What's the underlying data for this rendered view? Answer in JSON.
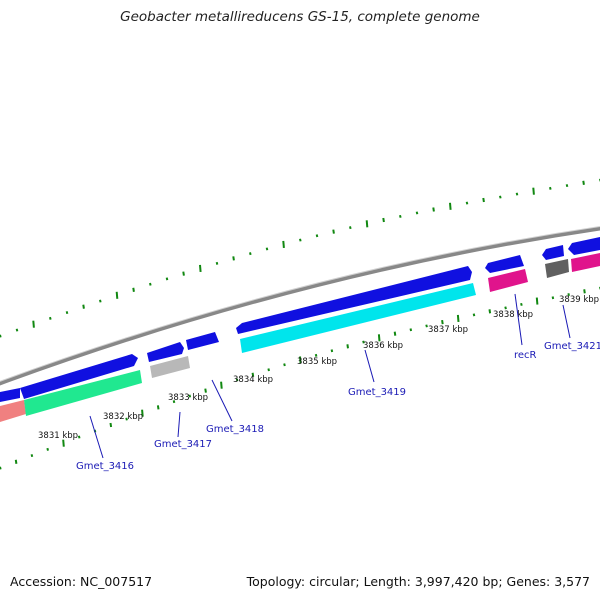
{
  "title": "Geobacter metallireducens GS-15, complete genome",
  "footer": {
    "accession": "Accession: NC_007517",
    "summary": "Topology: circular; Length: 3,997,420 bp; Genes: 3,577"
  },
  "colors": {
    "forward_cds": "#1010e0",
    "rrna_like": "#e0148c",
    "cyan_feature": "#00e5ec",
    "green_feature": "#20e890",
    "salmon_feature": "#f08080",
    "grey_feature": "#b8b8b8",
    "dark_grey_feature": "#606060",
    "backbone": "#888888",
    "gc_tick": "#118811",
    "label": "#1a1ab5"
  },
  "axis_ticks": [
    "3831 kbp",
    "3832 kbp",
    "3833 kbp",
    "3834 kbp",
    "3835 kbp",
    "3836 kbp",
    "3837 kbp",
    "3838 kbp",
    "3839 kbp"
  ],
  "gene_labels": [
    "Gmet_3416",
    "Gmet_3417",
    "Gmet_3418",
    "Gmet_3419",
    "recR",
    "Gmet_3421"
  ]
}
